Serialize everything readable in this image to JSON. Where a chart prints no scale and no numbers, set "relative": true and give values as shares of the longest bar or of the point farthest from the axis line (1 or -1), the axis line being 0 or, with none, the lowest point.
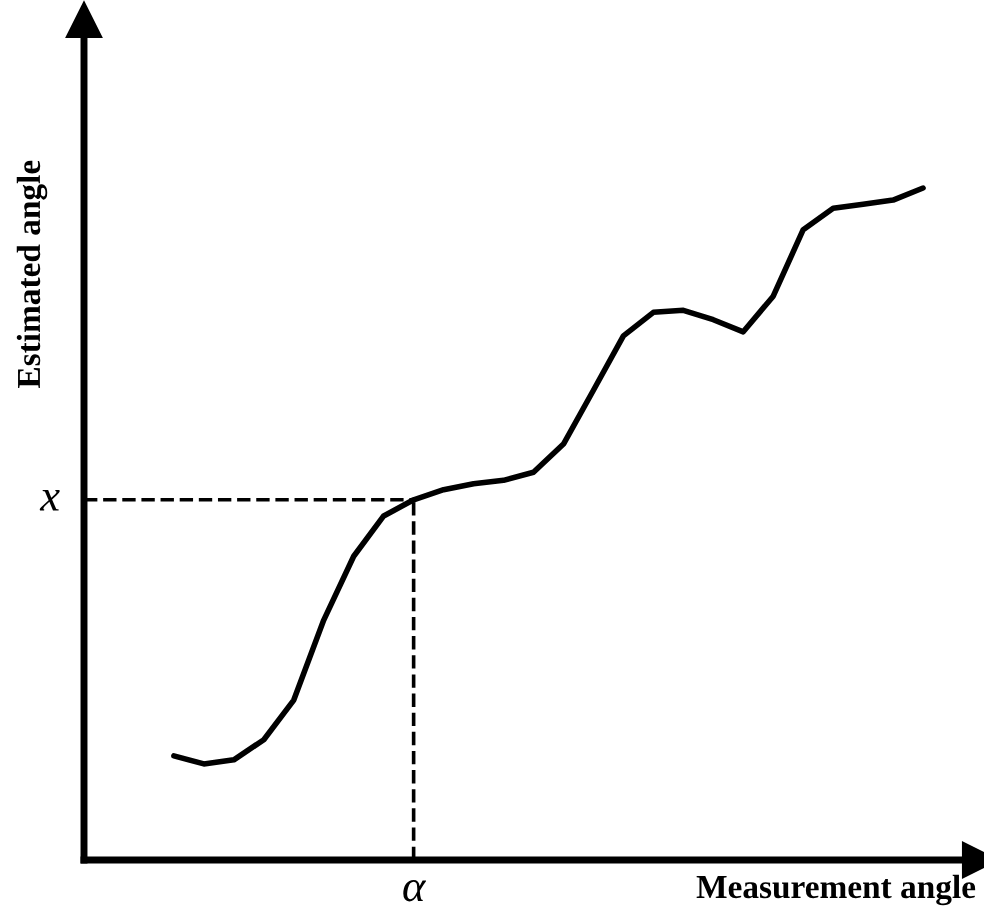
{
  "chart_data": {
    "type": "line",
    "relative": true,
    "xlabel": "Measurement angle",
    "ylabel": "Estimated angle",
    "categories": [
      null,
      null,
      null,
      null,
      null,
      null,
      null,
      null,
      null,
      null,
      null,
      null,
      null,
      null,
      null,
      null,
      null,
      null,
      null,
      null,
      null,
      null,
      null,
      null,
      null,
      null
    ],
    "series": [
      {
        "color": "#000000",
        "values": [
          0.155,
          0.143,
          0.149,
          0.179,
          0.238,
          0.357,
          0.452,
          0.512,
          0.536,
          0.551,
          0.56,
          0.565,
          0.577,
          0.619,
          0.699,
          0.78,
          0.815,
          0.818,
          0.804,
          0.786,
          0.839,
          0.938,
          0.97,
          0.976,
          0.982,
          1
        ]
      }
    ],
    "ref_lines": [
      {
        "axis": "y",
        "value": 0.536,
        "label": "x",
        "line_style": "dashed"
      }
    ],
    "annotations": [
      "α"
    ],
    "grid": false,
    "legend": false,
    "marker": "none",
    "line_style": "solid"
  }
}
